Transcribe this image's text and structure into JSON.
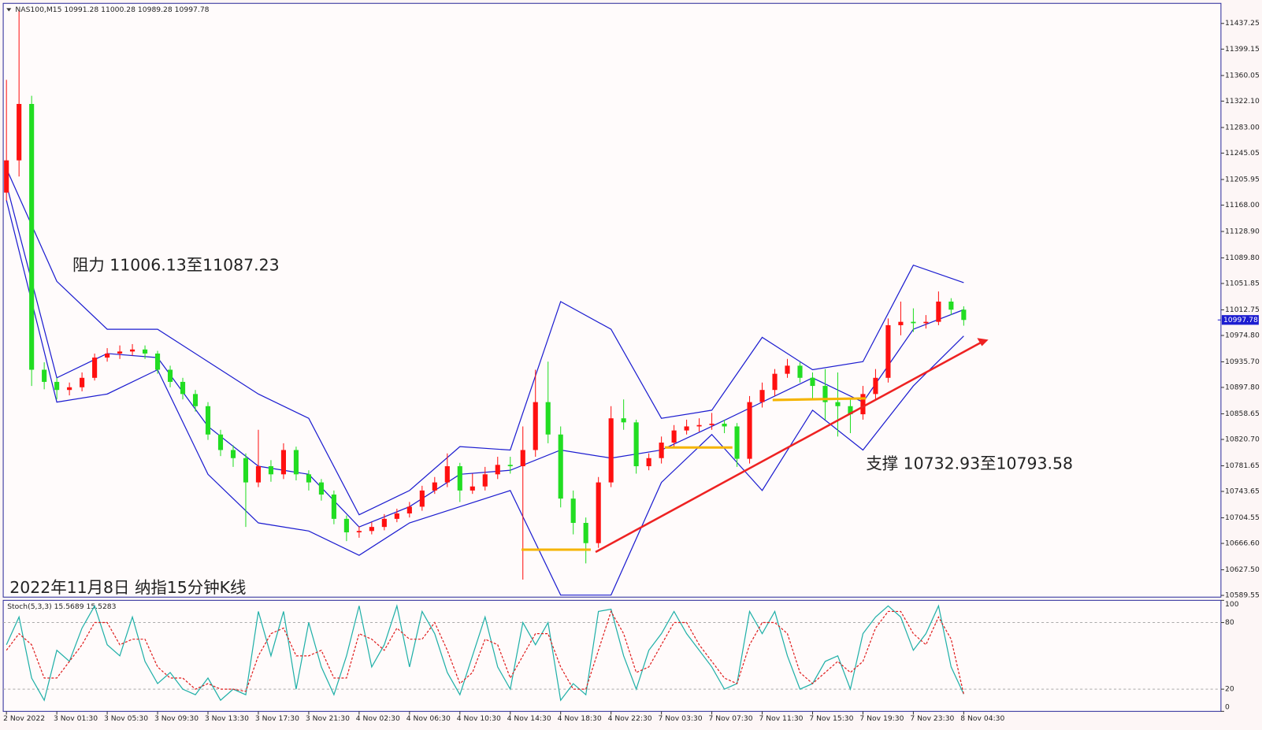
{
  "chart_data": {
    "type": "candlestick",
    "title": "NAS100,M15  10991.28 11000.28 10989.28 10997.78",
    "categories": [
      "2 Nov 2022",
      null,
      null,
      null,
      "3 Nov 01:30",
      null,
      null,
      null,
      "3 Nov 05:30",
      null,
      null,
      null,
      "3 Nov 09:30",
      null,
      null,
      null,
      "3 Nov 13:30",
      null,
      null,
      null,
      "3 Nov 17:30",
      null,
      null,
      null,
      "3 Nov 21:30",
      null,
      null,
      null,
      "4 Nov 02:30",
      null,
      null,
      null,
      "4 Nov 06:30",
      null,
      null,
      null,
      "4 Nov 10:30",
      null,
      null,
      null,
      "4 Nov 14:30",
      null,
      null,
      null,
      "4 Nov 18:30",
      null,
      null,
      null,
      "4 Nov 22:30",
      null,
      null,
      null,
      "7 Nov 03:30",
      null,
      null,
      null,
      "7 Nov 07:30",
      null,
      null,
      null,
      "7 Nov 11:30",
      null,
      null,
      null,
      "7 Nov 15:30",
      null,
      null,
      null,
      "7 Nov 19:30",
      null,
      null,
      null,
      "7 Nov 23:30",
      null,
      null,
      null,
      "8 Nov 04:30"
    ],
    "open": [
      11186.5,
      11234.3,
      11317.9,
      10924,
      10906,
      10894,
      10898,
      10912,
      10942,
      10948,
      10951,
      10954,
      10948,
      10924,
      10906,
      10888,
      10870,
      10828,
      10805,
      10793,
      10757,
      10781,
      10769,
      10805,
      10769,
      10757,
      10739,
      10703,
      10683,
      10685,
      10691,
      10703,
      10711,
      10721,
      10745,
      10757,
      10781,
      10745,
      10751,
      10769,
      10783,
      10781,
      10805,
      10876,
      10828,
      10733,
      10697,
      10667,
      10757,
      10852,
      10846,
      10781,
      10793,
      10816,
      10834,
      10840,
      10842,
      10844,
      10840,
      10792,
      10876,
      10894,
      10918,
      10930,
      10912,
      10900,
      10876,
      10870,
      10858,
      10888,
      10912,
      10990,
      10995,
      10993,
      10995,
      11025,
      11013
    ],
    "high": [
      11353.7,
      11455.2,
      11330,
      10935,
      10912,
      10905,
      10920,
      10948,
      10956,
      10960,
      10962,
      10960,
      10952,
      10930,
      10912,
      10894,
      10876,
      10835,
      10812,
      10800,
      10835,
      10790,
      10815,
      10810,
      10775,
      10762,
      10745,
      10708,
      10692,
      10698,
      10710,
      10718,
      10728,
      10752,
      10765,
      10800,
      10786,
      10770,
      10780,
      10795,
      10795,
      10840,
      10924,
      10936,
      10840,
      10745,
      10705,
      10765,
      10870,
      10880,
      10850,
      10800,
      10825,
      10842,
      10850,
      10852,
      10860,
      10850,
      10845,
      10885,
      10905,
      10925,
      10940,
      10935,
      10920,
      10925,
      10920,
      10880,
      10900,
      10925,
      11000,
      11025,
      11015,
      11005,
      11040,
      11030,
      11018
    ],
    "low": [
      11174.6,
      11210.4,
      10900,
      10895,
      10880,
      10886,
      10892,
      10908,
      10936,
      10940,
      10945,
      10940,
      10918,
      10898,
      10880,
      10862,
      10820,
      10796,
      10780,
      10691,
      10750,
      10758,
      10762,
      10760,
      10745,
      10730,
      10695,
      10670,
      10675,
      10680,
      10686,
      10698,
      10705,
      10715,
      10740,
      10750,
      10728,
      10740,
      10745,
      10762,
      10770,
      10613,
      10795,
      10815,
      10720,
      10680,
      10637,
      10660,
      10750,
      10835,
      10770,
      10775,
      10785,
      10810,
      10828,
      10832,
      10835,
      10830,
      10780,
      10785,
      10868,
      10885,
      10912,
      10905,
      10880,
      10850,
      10825,
      10830,
      10850,
      10880,
      10905,
      10975,
      10980,
      10985,
      10990,
      11005,
      10989.28
    ],
    "close": [
      11234.3,
      11317.9,
      10924,
      10906,
      10894,
      10898,
      10912,
      10942,
      10948,
      10951,
      10954,
      10948,
      10924,
      10906,
      10888,
      10870,
      10828,
      10805,
      10793,
      10757,
      10781,
      10769,
      10805,
      10769,
      10757,
      10739,
      10703,
      10683,
      10685,
      10691,
      10703,
      10711,
      10721,
      10745,
      10757,
      10781,
      10745,
      10751,
      10769,
      10783,
      10781,
      10805,
      10876,
      10828,
      10733,
      10697,
      10667,
      10757,
      10852,
      10846,
      10781,
      10793,
      10816,
      10834,
      10840,
      10842,
      10844,
      10840,
      10792,
      10876,
      10894,
      10918,
      10930,
      10912,
      10900,
      10876,
      10870,
      10858,
      10888,
      10912,
      10990,
      10995,
      10993,
      10995,
      11025,
      11013,
      10997.78
    ],
    "up_color": "#ff1010",
    "down_color": "#22dd22",
    "ylim": [
      10587,
      11467
    ],
    "yticks": [
      11437.25,
      11399.15,
      11360.05,
      {
        "value": 11322.1,
        "label": "11322.10"
      },
      {
        "value": 11283,
        "label": "11283.00"
      },
      11245.05,
      11205.95,
      {
        "value": 11168,
        "label": "11168.00"
      },
      {
        "value": 11128.9,
        "label": "11128.90"
      },
      {
        "value": 11089.8,
        "label": "11089.80"
      },
      11051.85,
      11012.75,
      {
        "value": 10974.8,
        "label": "10974.80"
      },
      {
        "value": 10935.7,
        "label": "10935.70"
      },
      {
        "value": 10897.8,
        "label": "10897.80"
      },
      10858.65,
      {
        "value": 10820.7,
        "label": "10820.70"
      },
      10781.65,
      10743.65,
      10704.55,
      {
        "value": 10666.6,
        "label": "10666.60"
      },
      {
        "value": 10627.5,
        "label": "10627.50"
      },
      10589.55
    ],
    "current_price": 10997.78,
    "bands": {
      "color": "#1c1cd0",
      "upper": [
        11222,
        11055,
        10984,
        10984,
        10936,
        10888,
        10852,
        10709,
        10745,
        10810,
        10805,
        11025,
        10984,
        10852,
        10864,
        10972,
        10924,
        10936,
        11079,
        11053
      ],
      "middle": [
        11199,
        10912,
        10948,
        10942,
        10840,
        10781,
        10769,
        10691,
        10721,
        10769,
        10775,
        10805,
        10793,
        10805,
        10840,
        10876,
        10912,
        10876,
        10984,
        11013
      ],
      "lower": [
        11175,
        10876,
        10888,
        10924,
        10769,
        10697,
        10685,
        10649,
        10697,
        10721,
        10745,
        10590,
        10590,
        10757,
        10828,
        10745,
        10864,
        10805,
        10900,
        10974
      ]
    },
    "annotations": [
      "阻力 11006.13至11087.23",
      "支撑 10732.93至10793.58",
      "2022年11月8日 纳指15分钟K线"
    ],
    "indicator": {
      "type": "line",
      "title": "Stoch(5,3,3) 15.5689 15.5283",
      "ylim": [
        0,
        100
      ],
      "yticks": [
        100,
        80,
        20,
        0
      ],
      "series": [
        {
          "color": "#20b0a8",
          "values": [
            60,
            85,
            30,
            10,
            55,
            45,
            75,
            95,
            60,
            50,
            85,
            45,
            25,
            35,
            20,
            15,
            30,
            10,
            20,
            15,
            90,
            50,
            90,
            20,
            80,
            40,
            15,
            50,
            95,
            40,
            60,
            95,
            40,
            90,
            70,
            35,
            15,
            50,
            85,
            40,
            20,
            80,
            60,
            80,
            10,
            25,
            15,
            90,
            92,
            50,
            20,
            55,
            70,
            90,
            70,
            55,
            40,
            20,
            25,
            90,
            70,
            90,
            50,
            20,
            25,
            45,
            50,
            20,
            70,
            85,
            95,
            85,
            55,
            70,
            95,
            40,
            15.5689
          ]
        },
        {
          "color": "#e02020",
          "dashed": true,
          "values": [
            55,
            70,
            60,
            30,
            30,
            45,
            60,
            80,
            80,
            60,
            65,
            65,
            40,
            30,
            30,
            20,
            25,
            20,
            20,
            18,
            50,
            70,
            75,
            50,
            50,
            55,
            30,
            30,
            70,
            65,
            55,
            75,
            65,
            65,
            80,
            55,
            25,
            35,
            65,
            60,
            30,
            50,
            70,
            70,
            40,
            20,
            20,
            55,
            90,
            70,
            35,
            40,
            60,
            80,
            80,
            60,
            45,
            30,
            25,
            60,
            80,
            80,
            70,
            35,
            25,
            35,
            45,
            35,
            45,
            75,
            90,
            90,
            70,
            60,
            85,
            65,
            15.5283
          ]
        }
      ]
    }
  }
}
